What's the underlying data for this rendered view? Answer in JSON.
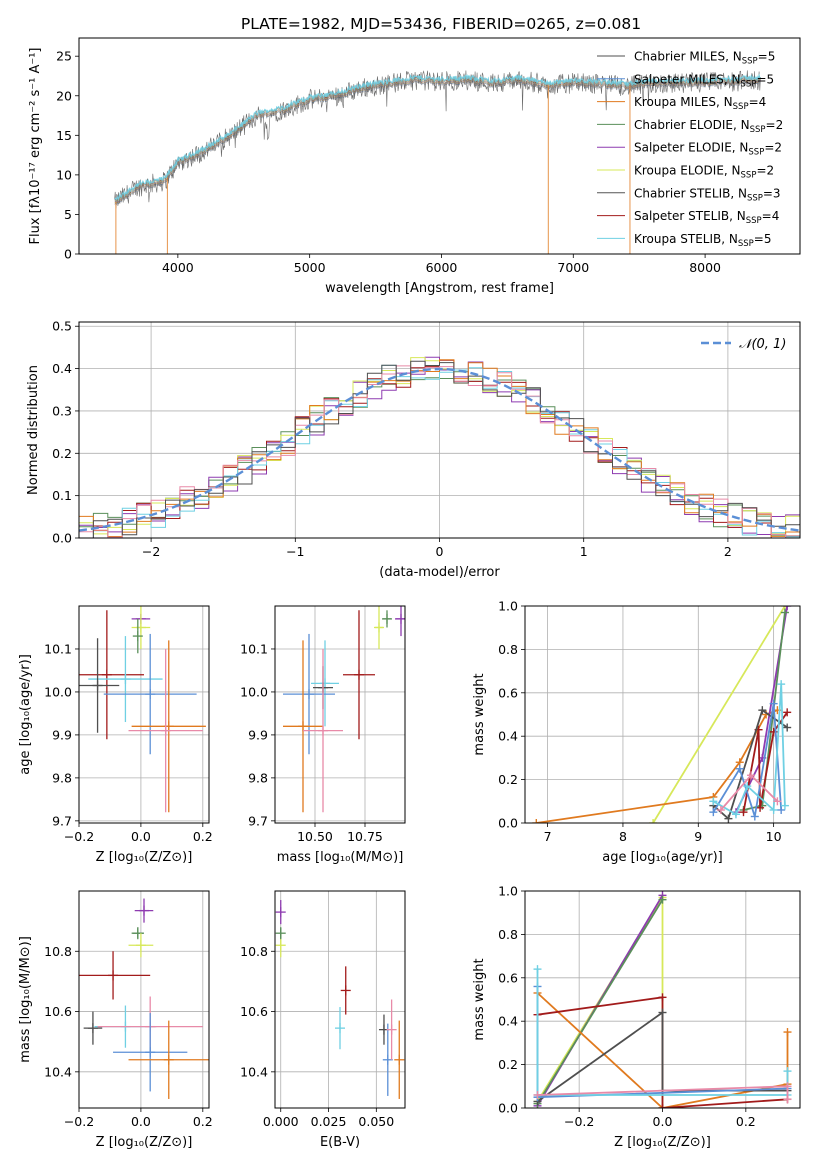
{
  "figure_title": "PLATE=1982, MJD=53436, FIBERID=0265, z=0.081",
  "colors": {
    "grid": "#b0b0b0",
    "spectrum_data": "#6b6b6b",
    "model_cyan": "#6fd0e3",
    "gaussian": "#5b8fd6"
  },
  "chart_data": [
    {
      "id": "spectrum",
      "type": "line",
      "title": "PLATE=1982, MJD=53436, FIBERID=0265, z=0.081",
      "xlabel": "wavelength [Angstrom, rest frame]",
      "ylabel": "Flux [fλ10⁻¹⁷ erg cm⁻² s⁻¹ A⁻¹]",
      "xlim": [
        3250,
        8720
      ],
      "ylim": [
        0,
        27.3
      ],
      "xticks": [
        4000,
        5000,
        6000,
        7000,
        8000
      ],
      "yticks": [
        0,
        5,
        10,
        15,
        20,
        25
      ],
      "grid": false,
      "legend_position": "top-right",
      "legend": [
        {
          "label": "Chabrier MILES, N",
          "sub": "SSP",
          "suffix": "=5",
          "color": "#4f4f4f"
        },
        {
          "label": "Salpeter MILES, N",
          "sub": "SSP",
          "suffix": "=5",
          "color": "#5b8fd6"
        },
        {
          "label": "Kroupa MILES, N",
          "sub": "SSP",
          "suffix": "=4",
          "color": "#e07a1f"
        },
        {
          "label": "Chabrier ELODIE, N",
          "sub": "SSP",
          "suffix": "=2",
          "color": "#5a8f5a"
        },
        {
          "label": "Salpeter ELODIE, N",
          "sub": "SSP",
          "suffix": "=2",
          "color": "#8e3bb0"
        },
        {
          "label": "Kroupa ELODIE, N",
          "sub": "SSP",
          "suffix": "=2",
          "color": "#d7e85a"
        },
        {
          "label": "Chabrier STELIB, N",
          "sub": "SSP",
          "suffix": "=3",
          "color": "#555555"
        },
        {
          "label": "Salpeter STELIB, N",
          "sub": "SSP",
          "suffix": "=4",
          "color": "#a21b1b"
        },
        {
          "label": "Kroupa STELIB, N",
          "sub": "SSP",
          "suffix": "=5",
          "color": "#6fd0e3"
        }
      ],
      "continuum": [
        [
          3520,
          6.5
        ],
        [
          3700,
          8.5
        ],
        [
          3900,
          9.2
        ],
        [
          4000,
          11.5
        ],
        [
          4200,
          13
        ],
        [
          4400,
          15
        ],
        [
          4600,
          17.5
        ],
        [
          4800,
          18.2
        ],
        [
          5000,
          19.5
        ],
        [
          5200,
          20
        ],
        [
          5400,
          21
        ],
        [
          5600,
          21.5
        ],
        [
          5800,
          22
        ],
        [
          6000,
          21.8
        ],
        [
          6200,
          22
        ],
        [
          6400,
          21.6
        ],
        [
          6600,
          22
        ],
        [
          6800,
          21.3
        ],
        [
          7000,
          21.6
        ],
        [
          7200,
          21.5
        ],
        [
          7400,
          21.2
        ],
        [
          7600,
          21.5
        ],
        [
          7800,
          21.6
        ],
        [
          8000,
          21.7
        ],
        [
          8200,
          21.8
        ],
        [
          8400,
          22
        ]
      ],
      "data_noise": 1.3
    },
    {
      "id": "residuals",
      "type": "line",
      "xlabel": "(data-model)/error",
      "ylabel": "Normed distribution",
      "xlim": [
        -2.5,
        2.5
      ],
      "ylim": [
        0,
        0.51
      ],
      "xticks": [
        -2,
        -1,
        0,
        1,
        2
      ],
      "yticks": [
        0.0,
        0.1,
        0.2,
        0.3,
        0.4,
        0.5
      ],
      "grid": true,
      "legend_position": "top-right",
      "legend": [
        {
          "label": "𝒩(0, 1)",
          "color": "#5b8fd6",
          "style": "dashed"
        }
      ],
      "gaussian": {
        "mean": 0,
        "sigma": 1
      },
      "bin_width": 0.1,
      "histogram_colors": [
        "#5a8f5a",
        "#8e3bb0",
        "#d7e85a",
        "#a21b1b",
        "#6fd0e3",
        "#e07a1f",
        "#e88aa8",
        "#4f4f4f"
      ]
    },
    {
      "id": "age-vs-Z",
      "type": "scatter",
      "xlabel": "Z [log₁₀(Z/Z⊙)]",
      "ylabel": "age  [log₁₀(age/yr)]",
      "xlim": [
        -0.2,
        0.22
      ],
      "ylim": [
        9.695,
        10.2
      ],
      "xticks": [
        -0.2,
        0.0,
        0.2
      ],
      "xtick_labels": [
        "−0.2",
        "0.0",
        "0.2"
      ],
      "yticks": [
        9.7,
        9.8,
        9.9,
        10.0,
        10.1
      ],
      "grid": true,
      "points": [
        {
          "x": 0.0,
          "y": 10.17,
          "xerr": 0.03,
          "yerr": 0.0,
          "color": "#8e3bb0"
        },
        {
          "x": 0.0,
          "y": 10.15,
          "xerr": 0.03,
          "yerr": 0.05,
          "color": "#d7e85a"
        },
        {
          "x": -0.01,
          "y": 10.13,
          "xerr": 0.0,
          "yerr": 0.04,
          "color": "#5a8f5a"
        },
        {
          "x": -0.11,
          "y": 10.04,
          "xerr": 0.12,
          "yerr": 0.15,
          "color": "#a21b1b"
        },
        {
          "x": -0.05,
          "y": 10.03,
          "xerr": 0.12,
          "yerr": 0.1,
          "color": "#6fd0e3"
        },
        {
          "x": -0.14,
          "y": 10.015,
          "xerr": 0.07,
          "yerr": 0.11,
          "color": "#4f4f4f"
        },
        {
          "x": 0.03,
          "y": 9.995,
          "xerr": 0.15,
          "yerr": 0.14,
          "color": "#5b8fd6"
        },
        {
          "x": 0.09,
          "y": 9.92,
          "xerr": 0.12,
          "yerr": 0.2,
          "color": "#e07a1f"
        },
        {
          "x": 0.08,
          "y": 9.91,
          "xerr": 0.12,
          "yerr": 0.19,
          "color": "#e88aa8"
        }
      ]
    },
    {
      "id": "age-vs-mass",
      "type": "scatter",
      "xlabel": "mass [log₁₀(M/M⊙)]",
      "ylabel": "",
      "xlim": [
        10.3,
        10.95
      ],
      "ylim": [
        9.695,
        10.2
      ],
      "xticks": [
        10.5,
        10.75
      ],
      "xtick_labels": [
        "10.50",
        "10.75"
      ],
      "yticks": [
        9.7,
        9.8,
        9.9,
        10.0,
        10.1
      ],
      "grid": true,
      "points": [
        {
          "x": 10.93,
          "y": 10.17,
          "xerr": 0.03,
          "yerr": 0.04,
          "color": "#8e3bb0"
        },
        {
          "x": 10.86,
          "y": 10.17,
          "xerr": 0.02,
          "yerr": 0.02,
          "color": "#5a8f5a"
        },
        {
          "x": 10.82,
          "y": 10.15,
          "xerr": 0.02,
          "yerr": 0.05,
          "color": "#d7e85a"
        },
        {
          "x": 10.72,
          "y": 10.04,
          "xerr": 0.08,
          "yerr": 0.15,
          "color": "#a21b1b"
        },
        {
          "x": 10.55,
          "y": 10.02,
          "xerr": 0.07,
          "yerr": 0.1,
          "color": "#6fd0e3"
        },
        {
          "x": 10.54,
          "y": 10.01,
          "xerr": 0.05,
          "yerr": 0.05,
          "color": "#4f4f4f"
        },
        {
          "x": 10.47,
          "y": 9.995,
          "xerr": 0.13,
          "yerr": 0.14,
          "color": "#5b8fd6"
        },
        {
          "x": 10.44,
          "y": 9.92,
          "xerr": 0.1,
          "yerr": 0.2,
          "color": "#e07a1f"
        },
        {
          "x": 10.54,
          "y": 9.91,
          "xerr": 0.1,
          "yerr": 0.19,
          "color": "#e88aa8"
        }
      ]
    },
    {
      "id": "weight-vs-age",
      "type": "line",
      "xlabel": "age  [log₁₀(age/yr)]",
      "ylabel": "mass weight",
      "xlim": [
        6.7,
        10.35
      ],
      "ylim": [
        0,
        1.0
      ],
      "xticks": [
        7,
        8,
        9,
        10
      ],
      "yticks": [
        0.0,
        0.2,
        0.4,
        0.6,
        0.8,
        1.0
      ],
      "grid": true,
      "series": [
        {
          "color": "#d7e85a",
          "points": [
            [
              8.4,
              0.0
            ],
            [
              10.15,
              1.0
            ]
          ]
        },
        {
          "color": "#e07a1f",
          "points": [
            [
              6.85,
              0.0
            ],
            [
              9.2,
              0.12
            ],
            [
              9.55,
              0.28
            ],
            [
              9.9,
              0.5
            ],
            [
              10.05,
              0.52
            ]
          ]
        },
        {
          "color": "#8e3bb0",
          "points": [
            [
              9.5,
              0.05
            ],
            [
              9.85,
              0.3
            ],
            [
              10.18,
              1.0
            ]
          ]
        },
        {
          "color": "#5a8f5a",
          "points": [
            [
              9.6,
              0.06
            ],
            [
              9.85,
              0.08
            ],
            [
              10.15,
              0.97
            ]
          ]
        },
        {
          "color": "#a21b1b",
          "points": [
            [
              9.6,
              0.05
            ],
            [
              9.8,
              0.43
            ],
            [
              9.82,
              0.07
            ],
            [
              10.0,
              0.42
            ],
            [
              10.18,
              0.51
            ]
          ]
        },
        {
          "color": "#4f4f4f",
          "points": [
            [
              9.2,
              0.08
            ],
            [
              9.4,
              0.02
            ],
            [
              9.85,
              0.52
            ],
            [
              10.18,
              0.44
            ]
          ]
        },
        {
          "color": "#5b8fd6",
          "points": [
            [
              9.2,
              0.05
            ],
            [
              9.55,
              0.25
            ],
            [
              9.75,
              0.03
            ],
            [
              10.0,
              0.55
            ],
            [
              10.1,
              0.06
            ]
          ]
        },
        {
          "color": "#6fd0e3",
          "points": [
            [
              9.2,
              0.1
            ],
            [
              9.5,
              0.04
            ],
            [
              9.65,
              0.17
            ],
            [
              10.0,
              0.06
            ],
            [
              10.1,
              0.64
            ],
            [
              10.15,
              0.08
            ]
          ]
        },
        {
          "color": "#e88aa8",
          "points": [
            [
              9.3,
              0.06
            ],
            [
              9.7,
              0.22
            ],
            [
              10.05,
              0.1
            ]
          ]
        }
      ]
    },
    {
      "id": "mass-vs-Z",
      "type": "scatter",
      "xlabel": "Z [log₁₀(Z/Z⊙)]",
      "ylabel": "mass [log₁₀(M/M⊙)]",
      "xlim": [
        -0.2,
        0.22
      ],
      "ylim": [
        10.28,
        11.0
      ],
      "xticks": [
        -0.2,
        0.0,
        0.2
      ],
      "xtick_labels": [
        "−0.2",
        "0.0",
        "0.2"
      ],
      "yticks": [
        10.4,
        10.6,
        10.8
      ],
      "grid": true,
      "points": [
        {
          "x": 0.01,
          "y": 10.935,
          "xerr": 0.03,
          "yerr": 0.04,
          "color": "#8e3bb0"
        },
        {
          "x": -0.01,
          "y": 10.86,
          "xerr": 0.02,
          "yerr": 0.02,
          "color": "#5a8f5a"
        },
        {
          "x": 0.0,
          "y": 10.82,
          "xerr": 0.04,
          "yerr": 0.04,
          "color": "#d7e85a"
        },
        {
          "x": -0.09,
          "y": 10.72,
          "xerr": 0.12,
          "yerr": 0.08,
          "color": "#a21b1b"
        },
        {
          "x": -0.05,
          "y": 10.55,
          "xerr": 0.1,
          "yerr": 0.07,
          "color": "#6fd0e3"
        },
        {
          "x": -0.155,
          "y": 10.545,
          "xerr": 0.03,
          "yerr": 0.055,
          "color": "#4f4f4f"
        },
        {
          "x": 0.03,
          "y": 10.55,
          "xerr": 0.17,
          "yerr": 0.1,
          "color": "#e88aa8"
        },
        {
          "x": 0.03,
          "y": 10.465,
          "xerr": 0.12,
          "yerr": 0.13,
          "color": "#5b8fd6"
        },
        {
          "x": 0.09,
          "y": 10.44,
          "xerr": 0.13,
          "yerr": 0.13,
          "color": "#e07a1f"
        }
      ]
    },
    {
      "id": "mass-vs-ebv",
      "type": "scatter",
      "xlabel": "E(B-V)",
      "ylabel": "",
      "xlim": [
        -0.003,
        0.065
      ],
      "ylim": [
        10.28,
        11.0
      ],
      "xticks": [
        0.0,
        0.025,
        0.05
      ],
      "xtick_labels": [
        "0.000",
        "0.025",
        "0.050"
      ],
      "yticks": [
        10.4,
        10.6,
        10.8
      ],
      "grid": true,
      "points": [
        {
          "x": 0.0,
          "y": 10.93,
          "xerr": 0,
          "yerr": 0.04,
          "color": "#8e3bb0"
        },
        {
          "x": 0.0,
          "y": 10.82,
          "xerr": 0,
          "yerr": 0.04,
          "color": "#d7e85a"
        },
        {
          "x": 0.0,
          "y": 10.86,
          "xerr": 0,
          "yerr": 0.02,
          "color": "#5a8f5a"
        },
        {
          "x": 0.034,
          "y": 10.67,
          "xerr": 0,
          "yerr": 0.08,
          "color": "#a21b1b"
        },
        {
          "x": 0.031,
          "y": 10.545,
          "xerr": 0,
          "yerr": 0.07,
          "color": "#6fd0e3"
        },
        {
          "x": 0.054,
          "y": 10.54,
          "xerr": 0,
          "yerr": 0.05,
          "color": "#4f4f4f"
        },
        {
          "x": 0.056,
          "y": 10.44,
          "xerr": 0,
          "yerr": 0.12,
          "color": "#5b8fd6"
        },
        {
          "x": 0.058,
          "y": 10.54,
          "xerr": 0,
          "yerr": 0.1,
          "color": "#e88aa8"
        },
        {
          "x": 0.062,
          "y": 10.44,
          "xerr": 0,
          "yerr": 0.13,
          "color": "#e07a1f"
        }
      ]
    },
    {
      "id": "weight-vs-Z",
      "type": "line",
      "xlabel": "Z [log₁₀(Z/Z⊙)]",
      "ylabel": "mass weight",
      "xlim": [
        -0.33,
        0.33
      ],
      "ylim": [
        0,
        1.0
      ],
      "xticks": [
        -0.2,
        0.0,
        0.2
      ],
      "xtick_labels": [
        "−0.2",
        "0.0",
        "0.2"
      ],
      "yticks": [
        0.0,
        0.2,
        0.4,
        0.6,
        0.8,
        1.0
      ],
      "grid": true,
      "series": [
        {
          "color": "#d7e85a",
          "points": [
            [
              -0.3,
              0.03
            ],
            [
              0.0,
              0.97
            ],
            [
              0.0,
              0.0
            ]
          ]
        },
        {
          "color": "#8e3bb0",
          "points": [
            [
              -0.3,
              0.01
            ],
            [
              0.0,
              0.98
            ]
          ]
        },
        {
          "color": "#5a8f5a",
          "points": [
            [
              -0.3,
              0.02
            ],
            [
              0.0,
              0.96
            ]
          ]
        },
        {
          "color": "#e07a1f",
          "points": [
            [
              -0.3,
              0.53
            ],
            [
              0.0,
              0.0
            ],
            [
              0.3,
              0.11
            ],
            [
              0.3,
              0.35
            ]
          ]
        },
        {
          "color": "#a21b1b",
          "points": [
            [
              -0.3,
              0.43
            ],
            [
              0.0,
              0.51
            ],
            [
              0.0,
              0.0
            ],
            [
              0.3,
              0.04
            ]
          ]
        },
        {
          "color": "#4f4f4f",
          "points": [
            [
              -0.3,
              0.03
            ],
            [
              0.0,
              0.44
            ],
            [
              0.0,
              0.08
            ],
            [
              0.3,
              0.08
            ]
          ]
        },
        {
          "color": "#5b8fd6",
          "points": [
            [
              -0.3,
              0.05
            ],
            [
              -0.3,
              0.56
            ],
            [
              -0.3,
              0.05
            ],
            [
              0.3,
              0.09
            ]
          ]
        },
        {
          "color": "#6fd0e3",
          "points": [
            [
              -0.3,
              0.64
            ],
            [
              -0.3,
              0.06
            ],
            [
              0.3,
              0.06
            ],
            [
              0.3,
              0.17
            ]
          ]
        },
        {
          "color": "#e88aa8",
          "points": [
            [
              -0.3,
              0.06
            ],
            [
              0.3,
              0.1
            ],
            [
              0.3,
              0.04
            ]
          ]
        }
      ]
    }
  ]
}
